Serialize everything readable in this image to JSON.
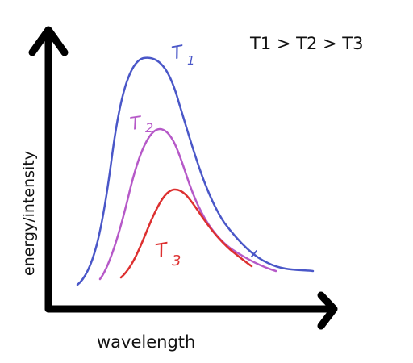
{
  "annotation": "T1 > T2 > T3",
  "axes": {
    "x_label": "wavelength",
    "y_label": "energy/intensity",
    "color": "#000000"
  },
  "curves": [
    {
      "id": "t1",
      "label_main": "T",
      "label_sub": "1",
      "color": "#4a57c8"
    },
    {
      "id": "t2",
      "label_main": "T",
      "label_sub": "2",
      "color": "#b659c8"
    },
    {
      "id": "t3",
      "label_main": "T",
      "label_sub": "3",
      "color": "#dd3030"
    }
  ]
}
